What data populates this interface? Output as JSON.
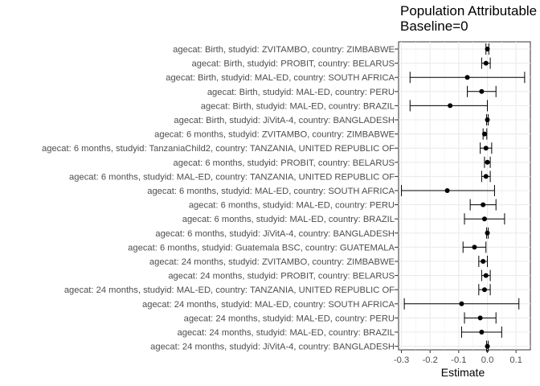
{
  "chart_data": {
    "type": "forest",
    "title": [
      "Population Attributable",
      "Baseline=0"
    ],
    "xlabel": "Estimate",
    "ylabel": "",
    "xlim": [
      -0.31,
      0.15
    ],
    "xticks": [
      -0.3,
      -0.2,
      -0.1,
      0.0,
      0.1
    ],
    "xtick_labels": [
      "-0.3",
      "-0.2",
      "-0.1",
      "0.0",
      "0.1"
    ],
    "grid": true,
    "rows": [
      {
        "label": "agecat: Birth, studyid: ZVITAMBO, country: ZIMBABWE",
        "estimate": 0.0,
        "lower": -0.005,
        "upper": 0.005
      },
      {
        "label": "agecat: Birth, studyid: PROBIT, country: BELARUS",
        "estimate": -0.005,
        "lower": -0.02,
        "upper": 0.01
      },
      {
        "label": "agecat: Birth, studyid: MAL-ED, country: SOUTH AFRICA",
        "estimate": -0.07,
        "lower": -0.27,
        "upper": 0.13
      },
      {
        "label": "agecat: Birth, studyid: MAL-ED, country: PERU",
        "estimate": -0.02,
        "lower": -0.07,
        "upper": 0.03
      },
      {
        "label": "agecat: Birth, studyid: MAL-ED, country: BRAZIL",
        "estimate": -0.13,
        "lower": -0.27,
        "upper": 0.0
      },
      {
        "label": "agecat: Birth, studyid: JiVitA-4, country: BANGLADESH",
        "estimate": 0.0,
        "lower": -0.003,
        "upper": 0.003
      },
      {
        "label": "agecat: 6 months, studyid: ZVITAMBO, country: ZIMBABWE",
        "estimate": -0.01,
        "lower": -0.015,
        "upper": -0.002
      },
      {
        "label": "agecat: 6 months, studyid: TanzaniaChild2, country: TANZANIA, UNITED REPUBLIC OF",
        "estimate": -0.005,
        "lower": -0.025,
        "upper": 0.015
      },
      {
        "label": "agecat: 6 months, studyid: PROBIT, country: BELARUS",
        "estimate": 0.0,
        "lower": -0.01,
        "upper": 0.01
      },
      {
        "label": "agecat: 6 months, studyid: MAL-ED, country: TANZANIA, UNITED REPUBLIC OF",
        "estimate": -0.005,
        "lower": -0.02,
        "upper": 0.01
      },
      {
        "label": "agecat: 6 months, studyid: MAL-ED, country: SOUTH AFRICA",
        "estimate": -0.14,
        "lower": -0.3,
        "upper": 0.025
      },
      {
        "label": "agecat: 6 months, studyid: MAL-ED, country: PERU",
        "estimate": -0.015,
        "lower": -0.06,
        "upper": 0.03
      },
      {
        "label": "agecat: 6 months, studyid: MAL-ED, country: BRAZIL",
        "estimate": -0.01,
        "lower": -0.08,
        "upper": 0.06
      },
      {
        "label": "agecat: 6 months, studyid: JiVitA-4, country: BANGLADESH",
        "estimate": 0.0,
        "lower": -0.003,
        "upper": 0.003
      },
      {
        "label": "agecat: 6 months, studyid: Guatemala BSC, country: GUATEMALA",
        "estimate": -0.045,
        "lower": -0.085,
        "upper": -0.005
      },
      {
        "label": "agecat: 24 months, studyid: ZVITAMBO, country: ZIMBABWE",
        "estimate": -0.015,
        "lower": -0.03,
        "upper": 0.0
      },
      {
        "label": "agecat: 24 months, studyid: PROBIT, country: BELARUS",
        "estimate": -0.005,
        "lower": -0.02,
        "upper": 0.01
      },
      {
        "label": "agecat: 24 months, studyid: MAL-ED, country: TANZANIA, UNITED REPUBLIC OF",
        "estimate": -0.01,
        "lower": -0.03,
        "upper": 0.01
      },
      {
        "label": "agecat: 24 months, studyid: MAL-ED, country: SOUTH AFRICA",
        "estimate": -0.09,
        "lower": -0.29,
        "upper": 0.11
      },
      {
        "label": "agecat: 24 months, studyid: MAL-ED, country: PERU",
        "estimate": -0.025,
        "lower": -0.08,
        "upper": 0.03
      },
      {
        "label": "agecat: 24 months, studyid: MAL-ED, country: BRAZIL",
        "estimate": -0.02,
        "lower": -0.09,
        "upper": 0.05
      },
      {
        "label": "agecat: 24 months, studyid: JiVitA-4, country: BANGLADESH",
        "estimate": 0.0,
        "lower": -0.003,
        "upper": 0.003
      }
    ]
  }
}
